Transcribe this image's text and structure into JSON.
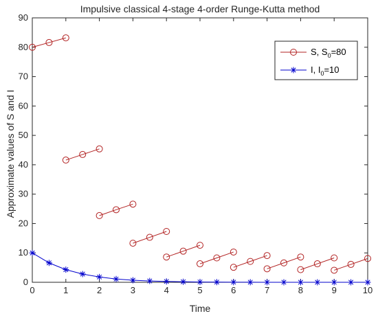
{
  "chart_data": {
    "type": "line",
    "title": "Impulsive classical 4-stage 4-order Runge-Kutta method",
    "xlabel": "Time",
    "ylabel": "Approximate values of S and I",
    "xlim": [
      0,
      10
    ],
    "ylim": [
      0,
      90
    ],
    "xticks": [
      "0",
      "1",
      "2",
      "3",
      "4",
      "5",
      "6",
      "7",
      "8",
      "9",
      "10"
    ],
    "yticks": [
      "0",
      "10",
      "20",
      "30",
      "40",
      "50",
      "60",
      "70",
      "80",
      "90"
    ],
    "grid": false,
    "legend_position": "top-right",
    "series": [
      {
        "name": "S, S0=80",
        "legend_main": "S, S",
        "legend_sub": "0",
        "legend_tail": "=80",
        "color": "#b22222",
        "marker": "circle",
        "segments": [
          {
            "x": [
              0,
              0.5,
              1
            ],
            "y": [
              80.0,
              81.6,
              83.2
            ]
          },
          {
            "x": [
              1,
              1.5,
              2
            ],
            "y": [
              41.6,
              43.5,
              45.4
            ]
          },
          {
            "x": [
              2,
              2.5,
              3
            ],
            "y": [
              22.7,
              24.7,
              26.6
            ]
          },
          {
            "x": [
              3,
              3.5,
              4
            ],
            "y": [
              13.3,
              15.3,
              17.3
            ]
          },
          {
            "x": [
              4,
              4.5,
              5
            ],
            "y": [
              8.6,
              10.6,
              12.6
            ]
          },
          {
            "x": [
              5,
              5.5,
              6
            ],
            "y": [
              6.3,
              8.3,
              10.3
            ]
          },
          {
            "x": [
              6,
              6.5,
              7
            ],
            "y": [
              5.1,
              7.1,
              9.1
            ]
          },
          {
            "x": [
              7,
              7.5,
              8
            ],
            "y": [
              4.6,
              6.6,
              8.6
            ]
          },
          {
            "x": [
              8,
              8.5,
              9
            ],
            "y": [
              4.3,
              6.3,
              8.3
            ]
          },
          {
            "x": [
              9,
              9.5,
              10
            ],
            "y": [
              4.1,
              6.1,
              8.1
            ]
          }
        ]
      },
      {
        "name": "I, I0=10",
        "legend_main": "I, I",
        "legend_sub": "0",
        "legend_tail": "=10",
        "color": "#0000cd",
        "marker": "asterisk",
        "segments": [
          {
            "x": [
              0,
              0.5,
              1,
              1.5,
              2,
              2.5,
              3,
              3.5,
              4,
              4.5,
              5,
              5.5,
              6,
              6.5,
              7,
              7.5,
              8,
              8.5,
              9,
              9.5,
              10
            ],
            "y": [
              10.0,
              6.6,
              4.3,
              2.8,
              1.8,
              1.1,
              0.7,
              0.45,
              0.28,
              0.17,
              0.1,
              0.06,
              0.04,
              0.02,
              0.01,
              0.01,
              0.0,
              0.0,
              0.0,
              0.0,
              0.0
            ]
          }
        ]
      }
    ]
  }
}
